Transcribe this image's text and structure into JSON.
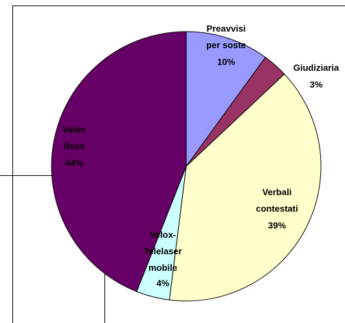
{
  "chart_data": {
    "type": "pie",
    "categories": [
      "Preavvisi\nper soste",
      "Giudiziaria",
      "Verbali\ncontestati",
      "Velox-\nTelelaser\nmobile",
      "Velox\nfisso"
    ],
    "values": [
      10,
      3,
      39,
      4,
      44
    ],
    "value_labels": [
      "10%",
      "3%",
      "39%",
      "4%",
      "44%"
    ],
    "colors": [
      "#9999ff",
      "#993366",
      "#ffffcc",
      "#ccffff",
      "#660066"
    ]
  }
}
